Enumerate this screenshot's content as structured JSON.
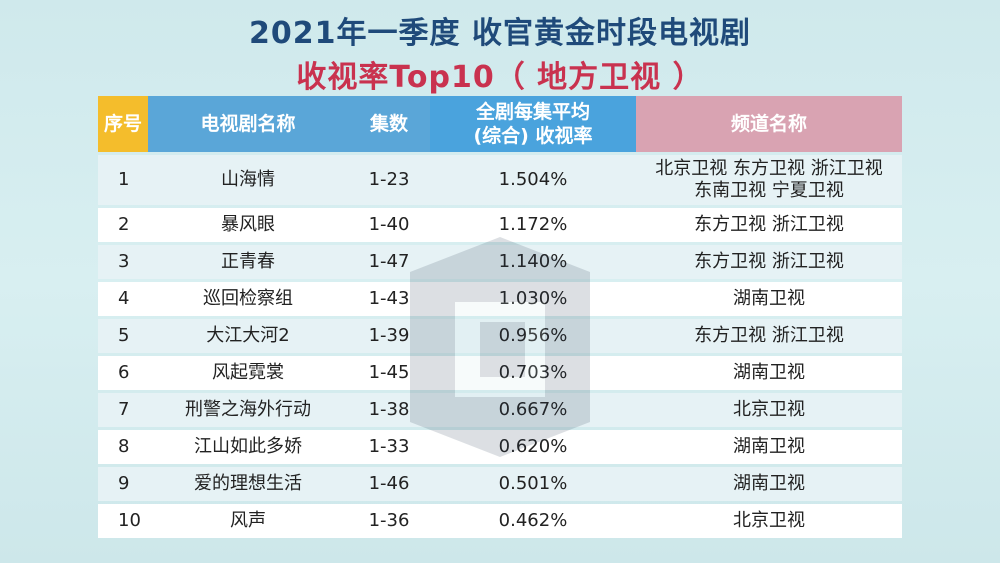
{
  "title_line1": "2021年一季度 收官黄金时段电视剧",
  "title_line2": "收视率Top10（ 地方卫视 ）",
  "table": {
    "headers": {
      "no": "序号",
      "name": "电视剧名称",
      "episodes": "集数",
      "rate_line1": "全剧每集平均",
      "rate_line2": "(综合) 收视率",
      "channel": "频道名称"
    },
    "rows": [
      {
        "no": "1",
        "name": "山海情",
        "episodes": "1-23",
        "rate": "1.504%",
        "channel_line1": "北京卫视 东方卫视 浙江卫视",
        "channel_line2": "东南卫视 宁夏卫视"
      },
      {
        "no": "2",
        "name": "暴风眼",
        "episodes": "1-40",
        "rate": "1.172%",
        "channel_line1": "东方卫视 浙江卫视"
      },
      {
        "no": "3",
        "name": "正青春",
        "episodes": "1-47",
        "rate": "1.140%",
        "channel_line1": "东方卫视 浙江卫视"
      },
      {
        "no": "4",
        "name": "巡回检察组",
        "episodes": "1-43",
        "rate": "1.030%",
        "channel_line1": "湖南卫视"
      },
      {
        "no": "5",
        "name": "大江大河2",
        "episodes": "1-39",
        "rate": "0.956%",
        "channel_line1": "东方卫视 浙江卫视"
      },
      {
        "no": "6",
        "name": "风起霓裳",
        "episodes": "1-45",
        "rate": "0.703%",
        "channel_line1": "湖南卫视"
      },
      {
        "no": "7",
        "name": "刑警之海外行动",
        "episodes": "1-38",
        "rate": "0.667%",
        "channel_line1": "北京卫视"
      },
      {
        "no": "8",
        "name": "江山如此多娇",
        "episodes": "1-33",
        "rate": "0.620%",
        "channel_line1": "湖南卫视"
      },
      {
        "no": "9",
        "name": "爱的理想生活",
        "episodes": "1-46",
        "rate": "0.501%",
        "channel_line1": "湖南卫视"
      },
      {
        "no": "10",
        "name": "风声",
        "episodes": "1-36",
        "rate": "0.462%",
        "channel_line1": "北京卫视"
      }
    ]
  },
  "colors": {
    "title1": "#1f4a7a",
    "title2": "#c9324f",
    "header_no": "#f4bd2c",
    "header_blue": "#5aa6d8",
    "header_channel": "#d9a3b2"
  },
  "watermark_icon": "logo-watermark-icon"
}
